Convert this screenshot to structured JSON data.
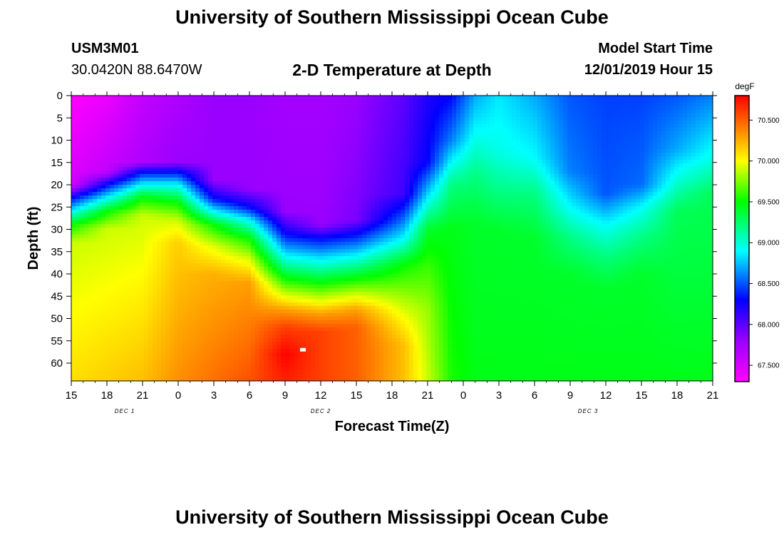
{
  "header": {
    "title": "University of Southern Mississippi Ocean Cube",
    "station_id": "USM3M01",
    "coordinates": "30.0420N 88.6470W",
    "subtitle": "2-D Temperature at Depth",
    "model_start_label": "Model Start Time",
    "model_start_value": "12/01/2019 Hour 15"
  },
  "footer": {
    "title": "University of Southern Mississippi Ocean Cube"
  },
  "chart_data": {
    "type": "heatmap",
    "title": "2-D Temperature at Depth",
    "xlabel": "Forecast Time(Z)",
    "ylabel": "Depth (ft)",
    "x_hours_from_start": [
      0,
      3,
      6,
      9,
      12,
      15,
      18,
      21,
      24,
      27,
      30,
      33,
      36,
      39,
      42,
      45,
      48,
      51,
      54
    ],
    "x_tick_labels": [
      "15",
      "18",
      "21",
      "0",
      "3",
      "6",
      "9",
      "12",
      "15",
      "18",
      "21",
      "0",
      "3",
      "6",
      "9",
      "12",
      "15",
      "18",
      "21"
    ],
    "date_labels": [
      {
        "label": "DEC 1",
        "at_hour": 4.5
      },
      {
        "label": "DEC 2",
        "at_hour": 21
      },
      {
        "label": "DEC 3",
        "at_hour": 43.5
      }
    ],
    "xlim": [
      0,
      54
    ],
    "y_ticks": [
      0,
      5,
      10,
      15,
      20,
      25,
      30,
      35,
      40,
      45,
      50,
      55,
      60
    ],
    "ylim": [
      0,
      64
    ],
    "y_inverted": true,
    "colorbar": {
      "unit": "degF",
      "range": [
        67.3,
        70.8
      ],
      "tick_values": [
        67.5,
        68.0,
        68.5,
        69.0,
        69.5,
        70.0,
        70.5
      ],
      "tick_labels": [
        "67.500",
        "68.000",
        "68.500",
        "69.000",
        "69.500",
        "70.000",
        "70.500"
      ],
      "stops": [
        {
          "value": 67.3,
          "color": "#ff00ff"
        },
        {
          "value": 67.8,
          "color": "#9a00ff"
        },
        {
          "value": 68.3,
          "color": "#0000ff"
        },
        {
          "value": 68.9,
          "color": "#00ffff"
        },
        {
          "value": 69.5,
          "color": "#00ff00"
        },
        {
          "value": 70.0,
          "color": "#ffff00"
        },
        {
          "value": 70.4,
          "color": "#ff7f00"
        },
        {
          "value": 70.8,
          "color": "#ff0000"
        }
      ]
    },
    "grid": false,
    "columns": [
      {
        "hour": 0,
        "profile": [
          [
            0,
            67.3
          ],
          [
            20,
            67.5
          ],
          [
            23,
            68.3
          ],
          [
            26,
            68.9
          ],
          [
            29,
            69.5
          ],
          [
            33,
            69.9
          ],
          [
            64,
            70.1
          ]
        ]
      },
      {
        "hour": 3,
        "profile": [
          [
            0,
            67.4
          ],
          [
            17,
            67.6
          ],
          [
            20,
            68.3
          ],
          [
            23,
            68.9
          ],
          [
            26,
            69.5
          ],
          [
            30,
            69.9
          ],
          [
            64,
            70.15
          ]
        ]
      },
      {
        "hour": 6,
        "profile": [
          [
            0,
            67.6
          ],
          [
            15,
            67.7
          ],
          [
            17,
            68.3
          ],
          [
            20,
            68.9
          ],
          [
            23,
            69.5
          ],
          [
            27,
            69.9
          ],
          [
            64,
            70.2
          ]
        ]
      },
      {
        "hour": 9,
        "profile": [
          [
            0,
            67.7
          ],
          [
            15,
            67.8
          ],
          [
            17,
            68.3
          ],
          [
            20,
            68.9
          ],
          [
            24,
            69.5
          ],
          [
            28,
            69.9
          ],
          [
            33,
            70.15
          ],
          [
            64,
            70.35
          ]
        ]
      },
      {
        "hour": 12,
        "profile": [
          [
            0,
            67.8
          ],
          [
            19,
            67.8
          ],
          [
            23,
            68.3
          ],
          [
            26,
            68.9
          ],
          [
            29,
            69.5
          ],
          [
            34,
            69.95
          ],
          [
            40,
            70.25
          ],
          [
            64,
            70.45
          ]
        ]
      },
      {
        "hour": 15,
        "profile": [
          [
            0,
            67.8
          ],
          [
            21,
            67.8
          ],
          [
            25,
            68.3
          ],
          [
            28,
            68.9
          ],
          [
            32,
            69.5
          ],
          [
            37,
            69.95
          ],
          [
            42,
            70.3
          ],
          [
            64,
            70.55
          ]
        ]
      },
      {
        "hour": 18,
        "profile": [
          [
            0,
            67.75
          ],
          [
            26,
            67.8
          ],
          [
            31,
            68.3
          ],
          [
            36,
            68.9
          ],
          [
            41,
            69.5
          ],
          [
            45,
            69.95
          ],
          [
            48,
            70.3
          ],
          [
            52,
            70.6
          ],
          [
            58,
            70.8
          ],
          [
            64,
            70.7
          ]
        ]
      },
      {
        "hour": 21,
        "profile": [
          [
            0,
            67.75
          ],
          [
            29,
            67.8
          ],
          [
            32,
            68.3
          ],
          [
            37,
            68.9
          ],
          [
            42,
            69.5
          ],
          [
            46,
            69.95
          ],
          [
            49,
            70.3
          ],
          [
            53,
            70.6
          ],
          [
            64,
            70.6
          ]
        ]
      },
      {
        "hour": 24,
        "profile": [
          [
            0,
            67.8
          ],
          [
            28,
            67.9
          ],
          [
            31,
            68.3
          ],
          [
            36,
            68.9
          ],
          [
            41,
            69.5
          ],
          [
            45,
            69.95
          ],
          [
            48,
            70.3
          ],
          [
            52,
            70.5
          ],
          [
            64,
            70.5
          ]
        ]
      },
      {
        "hour": 28,
        "profile": [
          [
            0,
            68.0
          ],
          [
            22,
            68.1
          ],
          [
            27,
            68.5
          ],
          [
            32,
            68.9
          ],
          [
            38,
            69.5
          ],
          [
            45,
            69.8
          ],
          [
            50,
            70.0
          ],
          [
            56,
            70.2
          ],
          [
            64,
            70.2
          ]
        ]
      },
      {
        "hour": 30,
        "profile": [
          [
            0,
            68.2
          ],
          [
            15,
            68.3
          ],
          [
            22,
            68.8
          ],
          [
            30,
            69.4
          ],
          [
            38,
            69.6
          ],
          [
            48,
            69.8
          ],
          [
            64,
            69.9
          ]
        ]
      },
      {
        "hour": 32,
        "profile": [
          [
            0,
            68.3
          ],
          [
            10,
            68.6
          ],
          [
            20,
            69.2
          ],
          [
            30,
            69.45
          ],
          [
            64,
            69.55
          ]
        ]
      },
      {
        "hour": 34,
        "profile": [
          [
            0,
            68.7
          ],
          [
            8,
            68.9
          ],
          [
            18,
            69.2
          ],
          [
            28,
            69.4
          ],
          [
            64,
            69.45
          ]
        ]
      },
      {
        "hour": 36,
        "profile": [
          [
            0,
            68.85
          ],
          [
            12,
            68.95
          ],
          [
            22,
            69.2
          ],
          [
            30,
            69.4
          ],
          [
            64,
            69.45
          ]
        ]
      },
      {
        "hour": 39,
        "profile": [
          [
            0,
            68.7
          ],
          [
            14,
            68.9
          ],
          [
            22,
            69.2
          ],
          [
            32,
            69.4
          ],
          [
            64,
            69.45
          ]
        ]
      },
      {
        "hour": 42,
        "profile": [
          [
            0,
            68.5
          ],
          [
            17,
            68.6
          ],
          [
            25,
            68.9
          ],
          [
            32,
            69.2
          ],
          [
            40,
            69.4
          ],
          [
            64,
            69.45
          ]
        ]
      },
      {
        "hour": 45,
        "profile": [
          [
            0,
            68.45
          ],
          [
            22,
            68.5
          ],
          [
            29,
            68.9
          ],
          [
            36,
            69.2
          ],
          [
            43,
            69.4
          ],
          [
            64,
            69.45
          ]
        ]
      },
      {
        "hour": 48,
        "profile": [
          [
            0,
            68.45
          ],
          [
            20,
            68.55
          ],
          [
            25,
            68.9
          ],
          [
            32,
            69.2
          ],
          [
            40,
            69.4
          ],
          [
            64,
            69.45
          ]
        ]
      },
      {
        "hour": 51,
        "profile": [
          [
            0,
            68.5
          ],
          [
            12,
            68.7
          ],
          [
            18,
            68.95
          ],
          [
            26,
            69.3
          ],
          [
            64,
            69.45
          ]
        ]
      },
      {
        "hour": 54,
        "profile": [
          [
            0,
            68.6
          ],
          [
            8,
            68.8
          ],
          [
            14,
            68.95
          ],
          [
            22,
            69.3
          ],
          [
            64,
            69.45
          ]
        ]
      }
    ],
    "max_marker": {
      "hour": 19.5,
      "depth": 57
    }
  }
}
